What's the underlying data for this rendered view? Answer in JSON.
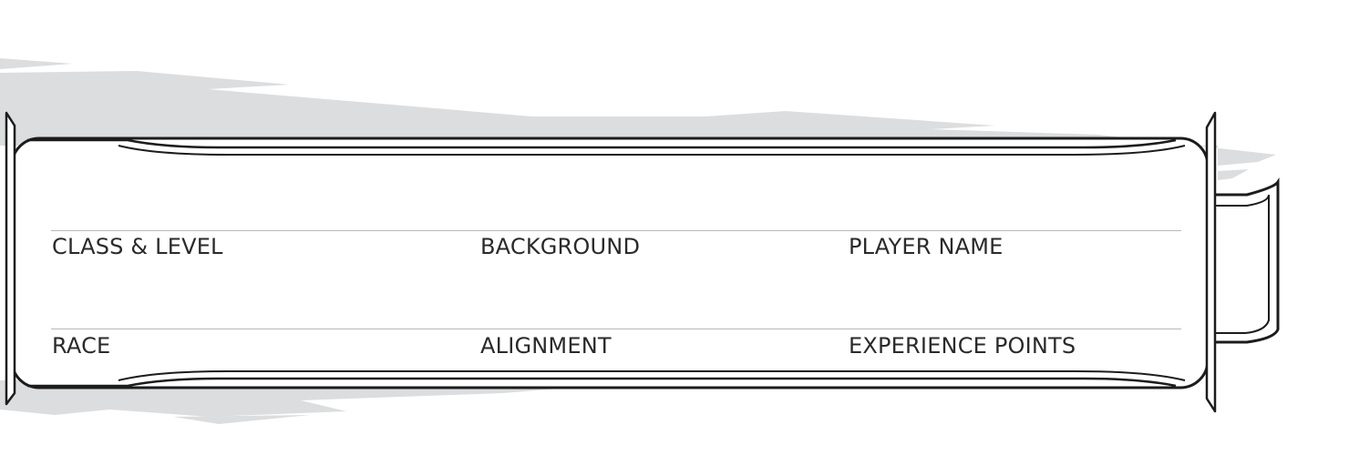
{
  "character_header": {
    "fields": [
      {
        "key": "class_level",
        "label": "CLASS & LEVEL"
      },
      {
        "key": "background",
        "label": "BACKGROUND"
      },
      {
        "key": "player_name",
        "label": "PLAYER NAME"
      },
      {
        "key": "race",
        "label": "RACE"
      },
      {
        "key": "alignment",
        "label": "ALIGNMENT"
      },
      {
        "key": "experience_points",
        "label": "EXPERIENCE POINTS"
      }
    ]
  },
  "colors": {
    "outline": "#1c1c1c",
    "shadow": "#dcdddf",
    "field_line": "#b9b9b9",
    "label": "#2a2a2a"
  }
}
